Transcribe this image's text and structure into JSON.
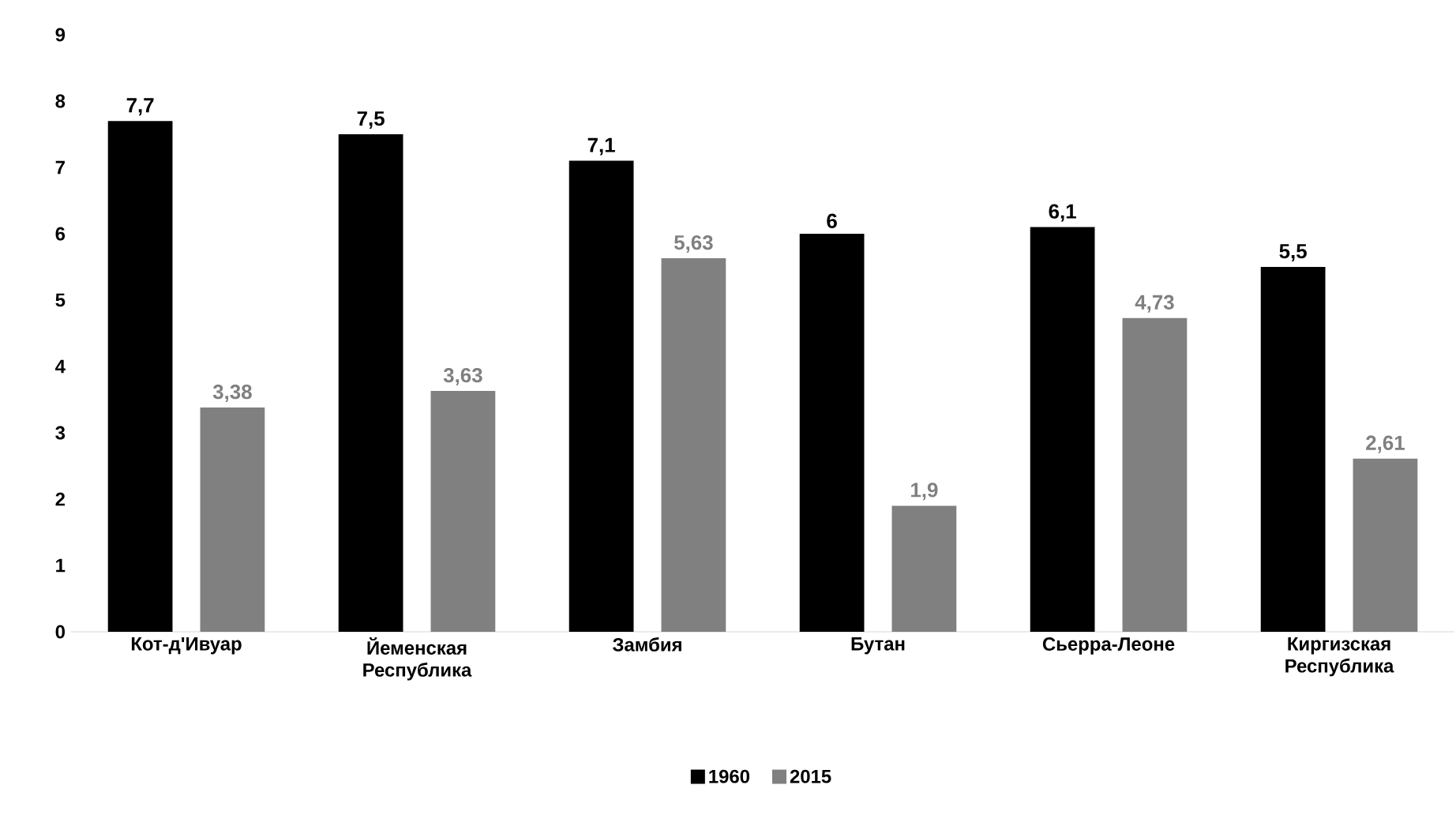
{
  "chart_data": {
    "type": "bar",
    "categories": [
      "Кот-д'Ивуар",
      "Йеменская Республика",
      "Замбия",
      "Бутан",
      "Сьерра-Леоне",
      "Киргизская Республика"
    ],
    "series": [
      {
        "name": "1960",
        "color": "#000000",
        "values": [
          7.7,
          7.5,
          7.1,
          6,
          6.1,
          5.5
        ],
        "value_labels": [
          "7,7",
          "7,5",
          "7,1",
          "6",
          "6,1",
          "5,5"
        ]
      },
      {
        "name": "2015",
        "color": "#808080",
        "values": [
          3.38,
          3.63,
          5.63,
          1.9,
          4.73,
          2.61
        ],
        "value_labels": [
          "3,38",
          "3,63",
          "5,63",
          "1,9",
          "4,73",
          "2,61"
        ]
      }
    ],
    "ylim": [
      0,
      9
    ],
    "yticks": [
      0,
      1,
      2,
      3,
      4,
      5,
      6,
      7,
      8,
      9
    ],
    "grid": false,
    "legend": "bottom"
  }
}
